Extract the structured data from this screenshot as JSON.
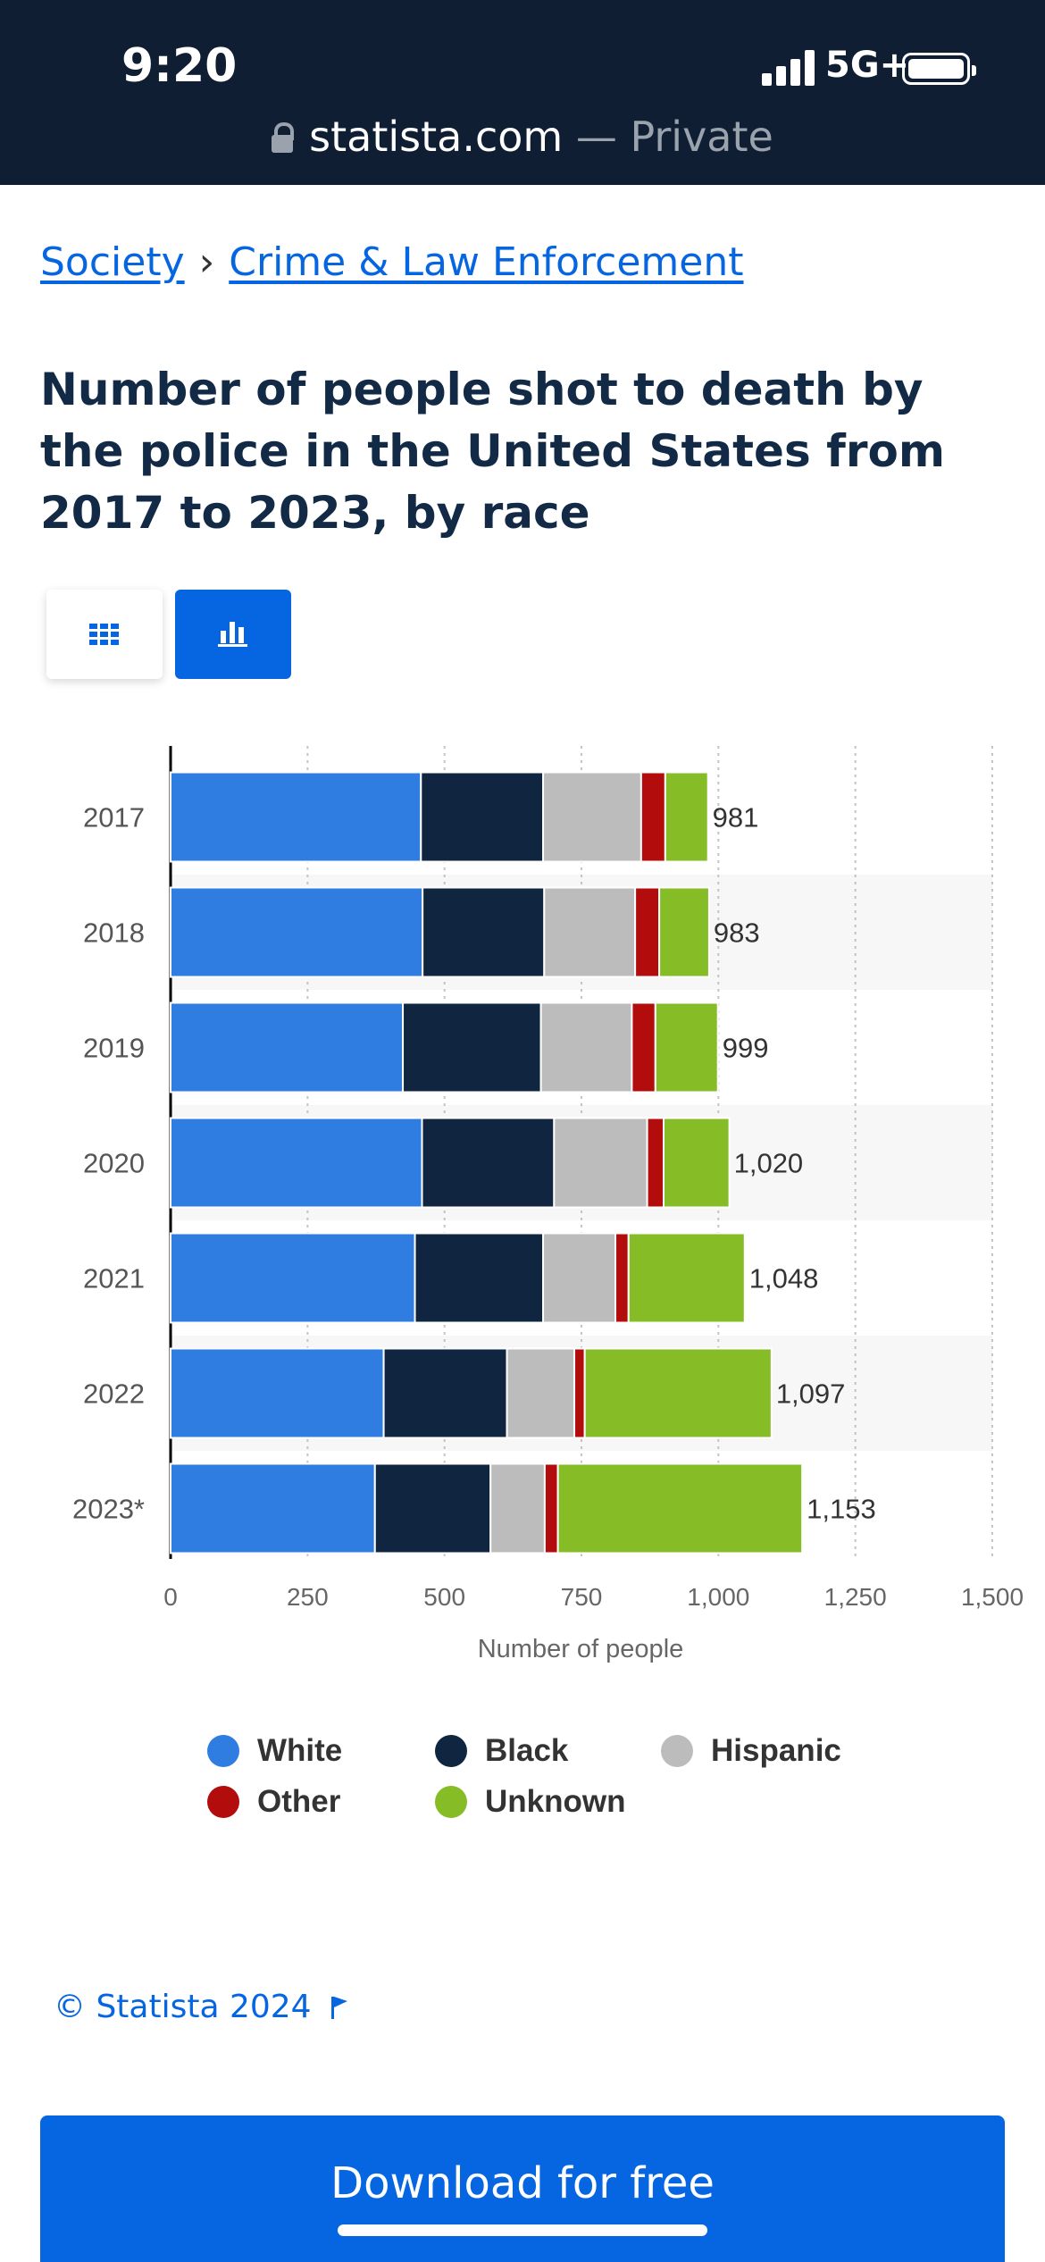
{
  "status_bar": {
    "time": "9:20",
    "network": "5G+"
  },
  "browser": {
    "domain": "statista.com",
    "suffix": " — Private"
  },
  "breadcrumb": {
    "items": [
      "Society",
      "Crime & Law Enforcement"
    ],
    "separator": "›"
  },
  "title": "Number of people shot to death by the police in the United States from 2017 to 2023, by race",
  "view_toggle": {
    "active": "chart",
    "icons": [
      "table-grid-icon",
      "bar-chart-icon"
    ]
  },
  "colors": {
    "white": "#2f7de1",
    "black": "#10253f",
    "hispanic": "#bcbcbc",
    "other": "#b30c0c",
    "unknown": "#86bc25",
    "brand": "#0666e2"
  },
  "chart_data": {
    "type": "bar",
    "orientation": "horizontal",
    "stacked": true,
    "categories": [
      "2017",
      "2018",
      "2019",
      "2020",
      "2021",
      "2022",
      "2023*"
    ],
    "series": [
      {
        "name": "White",
        "color": "#2f7de1",
        "values": [
          457,
          460,
          424,
          459,
          446,
          389,
          373
        ]
      },
      {
        "name": "Black",
        "color": "#10253f",
        "values": [
          223,
          222,
          252,
          241,
          234,
          225,
          211
        ]
      },
      {
        "name": "Hispanic",
        "color": "#bcbcbc",
        "values": [
          179,
          166,
          166,
          170,
          132,
          123,
          99
        ]
      },
      {
        "name": "Other",
        "color": "#b30c0c",
        "values": [
          44,
          44,
          43,
          30,
          24,
          19,
          24
        ]
      },
      {
        "name": "Unknown",
        "color": "#86bc25",
        "values": [
          78,
          91,
          114,
          120,
          212,
          341,
          446
        ]
      }
    ],
    "totals": [
      981,
      983,
      999,
      1020,
      1048,
      1097,
      1153
    ],
    "total_labels": [
      "981",
      "983",
      "999",
      "1,020",
      "1,048",
      "1,097",
      "1,153"
    ],
    "xlabel": "Number of people",
    "xlim": [
      0,
      1500
    ],
    "xticks": [
      0,
      250,
      500,
      750,
      1000,
      1250,
      1500
    ],
    "xtick_labels": [
      "0",
      "250",
      "500",
      "750",
      "1,000",
      "1,250",
      "1,500"
    ],
    "grid": true,
    "legend_position": "bottom"
  },
  "copyright": "© Statista 2024",
  "download_button": "Download for free"
}
